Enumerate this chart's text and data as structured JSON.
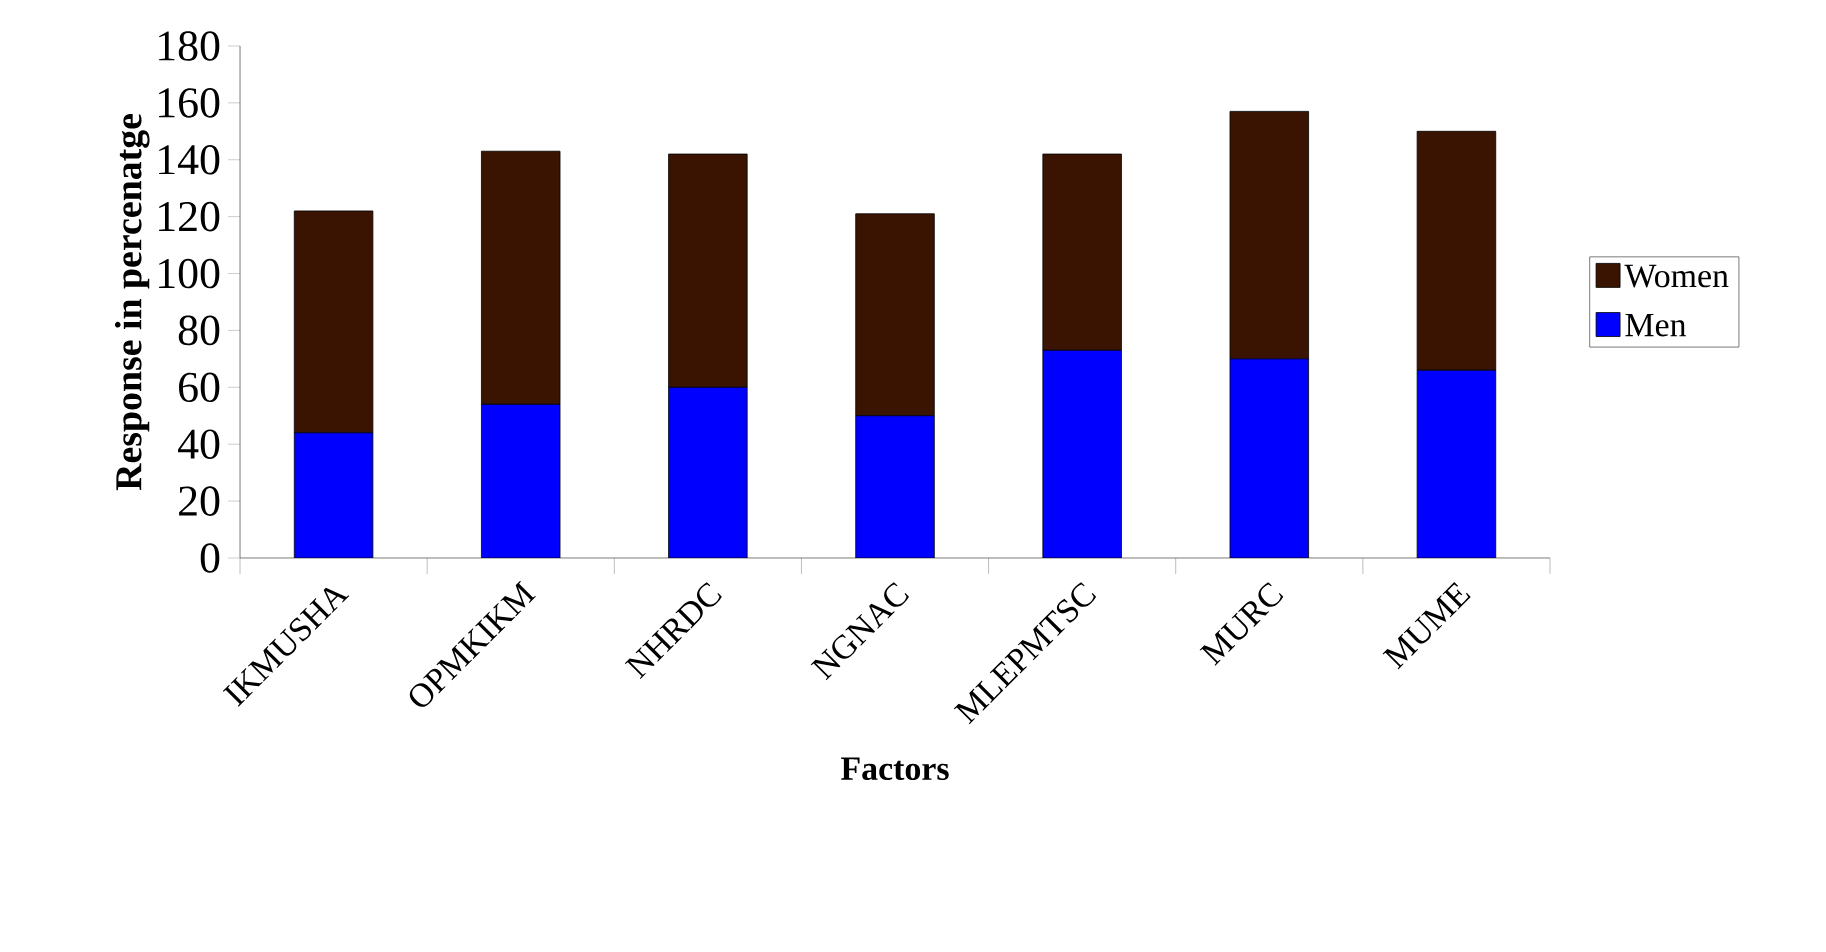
{
  "chart_data": {
    "type": "bar",
    "stacked": true,
    "xlabel": "Factors",
    "ylabel": "Response in percenatge",
    "categories": [
      "IKMUSHA",
      "OPMKIKM",
      "NHRDC",
      "NGNAC",
      "MLEPMTSC",
      "MURC",
      "MUME"
    ],
    "series": [
      {
        "name": "Men",
        "color": "#0000ff",
        "values": [
          44,
          54,
          60,
          50,
          73,
          70,
          66
        ]
      },
      {
        "name": "Women",
        "color": "#3a1400",
        "values": [
          78,
          89,
          82,
          71,
          69,
          87,
          84
        ]
      }
    ],
    "ylim": [
      0,
      180
    ],
    "yticks": [
      0,
      20,
      40,
      60,
      80,
      100,
      120,
      140,
      160,
      180
    ],
    "grid": false,
    "legend": "right"
  }
}
